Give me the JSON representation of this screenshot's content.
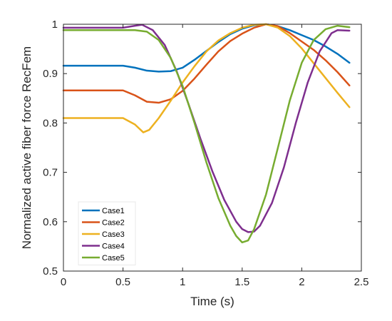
{
  "chart_data": {
    "type": "line",
    "title": "",
    "xlabel": "Time (s)",
    "ylabel": "Normalized active fiber force  RecFem",
    "xlim": [
      0,
      2.5
    ],
    "ylim": [
      0.5,
      1
    ],
    "xticks": [
      0,
      0.5,
      1,
      1.5,
      2,
      2.5
    ],
    "xtick_labels": [
      "0",
      "0.5",
      "1",
      "1.5",
      "2",
      "2.5"
    ],
    "yticks": [
      0.5,
      0.6,
      0.7,
      0.8,
      0.9,
      1
    ],
    "ytick_labels": [
      "0.5",
      "0.6",
      "0.7",
      "0.8",
      "0.9",
      "1"
    ],
    "grid": false,
    "legend_position": "bottom-left",
    "series": [
      {
        "name": "Case1",
        "color": "#0072BD",
        "points": [
          [
            0,
            0.916
          ],
          [
            0.3,
            0.916
          ],
          [
            0.5,
            0.916
          ],
          [
            0.6,
            0.912
          ],
          [
            0.7,
            0.906
          ],
          [
            0.8,
            0.904
          ],
          [
            0.9,
            0.905
          ],
          [
            1.0,
            0.912
          ],
          [
            1.1,
            0.928
          ],
          [
            1.2,
            0.946
          ],
          [
            1.3,
            0.964
          ],
          [
            1.4,
            0.98
          ],
          [
            1.5,
            0.991
          ],
          [
            1.6,
            0.998
          ],
          [
            1.7,
            1.0
          ],
          [
            1.8,
            0.996
          ],
          [
            1.9,
            0.988
          ],
          [
            2.0,
            0.978
          ],
          [
            2.1,
            0.968
          ],
          [
            2.2,
            0.955
          ],
          [
            2.3,
            0.94
          ],
          [
            2.4,
            0.922
          ]
        ]
      },
      {
        "name": "Case2",
        "color": "#D95319",
        "points": [
          [
            0,
            0.866
          ],
          [
            0.3,
            0.866
          ],
          [
            0.5,
            0.866
          ],
          [
            0.6,
            0.856
          ],
          [
            0.7,
            0.843
          ],
          [
            0.8,
            0.841
          ],
          [
            0.9,
            0.848
          ],
          [
            1.0,
            0.865
          ],
          [
            1.1,
            0.89
          ],
          [
            1.2,
            0.918
          ],
          [
            1.3,
            0.945
          ],
          [
            1.4,
            0.966
          ],
          [
            1.5,
            0.981
          ],
          [
            1.6,
            0.993
          ],
          [
            1.7,
            1.0
          ],
          [
            1.8,
            0.996
          ],
          [
            1.9,
            0.982
          ],
          [
            2.0,
            0.965
          ],
          [
            2.1,
            0.948
          ],
          [
            2.2,
            0.927
          ],
          [
            2.3,
            0.903
          ],
          [
            2.4,
            0.876
          ]
        ]
      },
      {
        "name": "Case3",
        "color": "#EDB120",
        "points": [
          [
            0,
            0.81
          ],
          [
            0.3,
            0.81
          ],
          [
            0.5,
            0.81
          ],
          [
            0.6,
            0.797
          ],
          [
            0.67,
            0.781
          ],
          [
            0.72,
            0.786
          ],
          [
            0.8,
            0.81
          ],
          [
            0.9,
            0.845
          ],
          [
            1.0,
            0.882
          ],
          [
            1.1,
            0.915
          ],
          [
            1.2,
            0.945
          ],
          [
            1.3,
            0.967
          ],
          [
            1.4,
            0.982
          ],
          [
            1.5,
            0.993
          ],
          [
            1.6,
            0.999
          ],
          [
            1.7,
            1.0
          ],
          [
            1.8,
            0.993
          ],
          [
            1.9,
            0.976
          ],
          [
            2.0,
            0.951
          ],
          [
            2.1,
            0.921
          ],
          [
            2.2,
            0.891
          ],
          [
            2.3,
            0.861
          ],
          [
            2.4,
            0.832
          ]
        ]
      },
      {
        "name": "Case4",
        "color": "#7E2F8E",
        "points": [
          [
            0,
            0.993
          ],
          [
            0.3,
            0.993
          ],
          [
            0.5,
            0.993
          ],
          [
            0.6,
            0.997
          ],
          [
            0.66,
            0.999
          ],
          [
            0.75,
            0.988
          ],
          [
            0.85,
            0.958
          ],
          [
            0.95,
            0.905
          ],
          [
            1.05,
            0.838
          ],
          [
            1.15,
            0.768
          ],
          [
            1.25,
            0.702
          ],
          [
            1.35,
            0.644
          ],
          [
            1.45,
            0.6
          ],
          [
            1.5,
            0.585
          ],
          [
            1.55,
            0.579
          ],
          [
            1.6,
            0.58
          ],
          [
            1.65,
            0.592
          ],
          [
            1.75,
            0.638
          ],
          [
            1.85,
            0.71
          ],
          [
            1.95,
            0.8
          ],
          [
            2.05,
            0.882
          ],
          [
            2.15,
            0.945
          ],
          [
            2.25,
            0.982
          ],
          [
            2.3,
            0.988
          ],
          [
            2.4,
            0.987
          ]
        ]
      },
      {
        "name": "Case5",
        "color": "#77AC30",
        "points": [
          [
            0,
            0.988
          ],
          [
            0.3,
            0.988
          ],
          [
            0.5,
            0.988
          ],
          [
            0.6,
            0.988
          ],
          [
            0.7,
            0.985
          ],
          [
            0.8,
            0.968
          ],
          [
            0.9,
            0.932
          ],
          [
            1.0,
            0.875
          ],
          [
            1.1,
            0.8
          ],
          [
            1.2,
            0.72
          ],
          [
            1.3,
            0.648
          ],
          [
            1.4,
            0.592
          ],
          [
            1.45,
            0.571
          ],
          [
            1.5,
            0.558
          ],
          [
            1.55,
            0.562
          ],
          [
            1.6,
            0.585
          ],
          [
            1.7,
            0.655
          ],
          [
            1.8,
            0.75
          ],
          [
            1.9,
            0.846
          ],
          [
            2.0,
            0.922
          ],
          [
            2.1,
            0.968
          ],
          [
            2.2,
            0.99
          ],
          [
            2.3,
            0.997
          ],
          [
            2.4,
            0.994
          ]
        ]
      }
    ]
  }
}
